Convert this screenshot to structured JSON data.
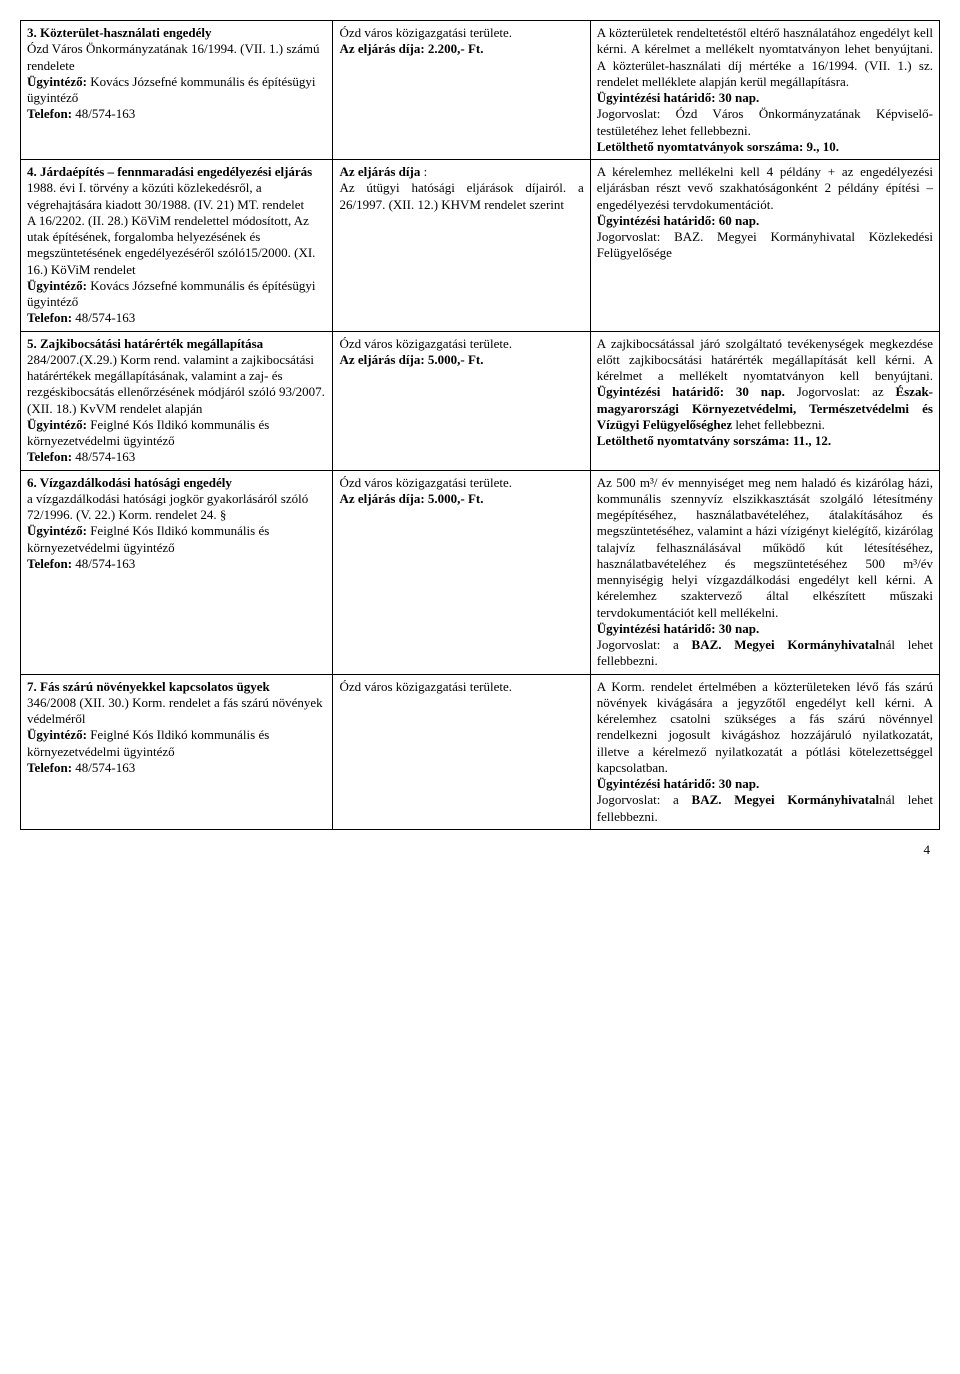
{
  "rows": [
    {
      "c1": [
        {
          "t": "3. Közterület-használati engedély",
          "b": true
        },
        {
          "t": "Ózd Város Önkormányzatának 16/1994. (VII. 1.) számú rendelete"
        },
        {
          "t": "Ügyintéző:",
          "b": true,
          "inline": " Kovács Józsefné kommunális és építésügyi ügyintéző"
        },
        {
          "t": "Telefon:",
          "b": true,
          "inline": " 48/574-163"
        }
      ],
      "c2": [
        {
          "t": "Ózd város közigazgatási területe."
        },
        {
          "t": "Az eljárás díja: 2.200,- Ft.",
          "b": true
        }
      ],
      "c3": [
        {
          "t": "A közterületek rendeltetéstől eltérő használatához engedélyt kell kérni. A kérelmet a mellékelt nyomtatványon lehet benyújtani. A közterület-használati díj mértéke a 16/1994. (VII. 1.) sz. rendelet melléklete alapján kerül megállapításra.",
          "just": true
        },
        {
          "t": "Ügyintézési határidő: 30 nap.",
          "b": true
        },
        {
          "t": "Jogorvoslat: Ózd Város Önkormányzatának Képviselő-testületéhez lehet fellebbezni.",
          "just": true
        },
        {
          "t": "Letölthető nyomtatványok sorszáma: 9., 10.",
          "b": true
        }
      ]
    },
    {
      "c1": [
        {
          "t": "4. Járdaépítés – fennmaradási engedélyezési eljárás",
          "b": true
        },
        {
          "t": "1988. évi I. törvény a közúti közlekedésről, a végrehajtására kiadott 30/1988. (IV. 21) MT. rendelet"
        },
        {
          "t": "A 16/2202. (II. 28.) KöViM rendelettel módosított, Az utak építésének, forgalomba helyezésének és megszüntetésének engedélyezéséről szóló15/2000. (XI. 16.) KöViM rendelet"
        },
        {
          "t": "Ügyintéző:",
          "b": true,
          "inline": " Kovács Józsefné kommunális és építésügyi ügyintéző"
        },
        {
          "t": "Telefon:",
          "b": true,
          "inline": " 48/574-163"
        }
      ],
      "c2": [
        {
          "t": "Az eljárás díja",
          "b": true,
          "inline": " :"
        },
        {
          "t": "Az útügyi hatósági eljárások díjairól. a 26/1997. (XII. 12.) KHVM rendelet szerint",
          "just": true
        }
      ],
      "c3": [
        {
          "t": "A kérelemhez mellékelni kell 4 példány + az engedélyezési eljárásban részt vevő szakhatóságonként 2 példány építési – engedélyezési tervdokumentációt.",
          "just": true
        },
        {
          "t": " "
        },
        {
          "t": "Ügyintézési határidő: 60 nap.",
          "b": true
        },
        {
          "t": "Jogorvoslat: BAZ. Megyei Kormányhivatal Közlekedési Felügyelősége",
          "just": true
        }
      ]
    },
    {
      "c1": [
        {
          "t": "5. Zajkibocsátási határérték megállapítása",
          "b": true
        },
        {
          "t": "284/2007.(X.29.) Korm rend. valamint a zajkibocsátási határértékek megállapításának, valamint a zaj- és rezgéskibocsátás ellenőrzésének módjáról szóló 93/2007. (XII. 18.) KvVM rendelet alapján"
        },
        {
          "t": " "
        },
        {
          "t": "Ügyintéző:",
          "b": true,
          "inline": " Feiglné Kós Ildikó kommunális és környezetvédelmi ügyintéző"
        },
        {
          "t": "Telefon:",
          "b": true,
          "inline": " 48/574-163"
        }
      ],
      "c2": [
        {
          "t": "Ózd város közigazgatási területe."
        },
        {
          "t": "Az eljárás díja: 5.000,- Ft.",
          "b": true
        }
      ],
      "c3": [
        {
          "t": "A zajkibocsátással járó szolgáltató tevékenységek megkezdése előtt zajkibocsátási határérték megállapítását kell kérni. A kérelmet a mellékelt nyomtatványon kell benyújtani.",
          "just": true,
          "trail_b": " Ügyintézési határidő: 30 nap.",
          "trail2": " Jogorvoslat: az ",
          "trail2_b": "Észak-magyarországi Környezetvédelmi, Természetvédelmi és Vízügyi Felügyelőséghez",
          "trail3": " lehet fellebbezni."
        },
        {
          "t": "Letölthető nyomtatvány sorszáma: 11., 12.",
          "b": true
        }
      ]
    },
    {
      "c1": [
        {
          "t": "6. Vízgazdálkodási hatósági engedély",
          "b": true
        },
        {
          "t": "a vízgazdálkodási hatósági jogkör gyakorlásáról szóló 72/1996. (V. 22.) Korm. rendelet 24. §"
        },
        {
          "t": " "
        },
        {
          "t": "Ügyintéző:",
          "b": true,
          "inline": " Feiglné Kós Ildikó kommunális és környezetvédelmi ügyintéző"
        },
        {
          "t": "Telefon:",
          "b": true,
          "inline": " 48/574-163"
        }
      ],
      "c2": [
        {
          "t": "Ózd város közigazgatási területe."
        },
        {
          "t": "Az eljárás díja: 5.000,- Ft.",
          "b": true
        }
      ],
      "c3": [
        {
          "t": "Az 500 m³/ év mennyiséget meg nem haladó és kizárólag házi, kommunális szennyvíz elszikkasztását szolgáló létesítmény megépítéséhez, használatbavételéhez, átalakításához és megszüntetéséhez, valamint a házi vízigényt kielégítő, kizárólag talajvíz felhasználásával működő kút létesítéséhez, használatbavételéhez és megszüntetéséhez 500 m³/év mennyiségig helyi vízgazdálkodási engedélyt kell kérni. A kérelemhez szaktervező által elkészített műszaki tervdokumentációt kell mellékelni.",
          "just": true
        },
        {
          "t": "Ügyintézési határidő: 30 nap.",
          "b": true
        },
        {
          "t": "Jogorvoslat: a ",
          "just": true,
          "trail_b": "BAZ. Megyei Kormányhivatal",
          "trail2": "nál lehet fellebbezni."
        }
      ]
    },
    {
      "c1": [
        {
          "t": "7. Fás szárú növényekkel kapcsolatos ügyek",
          "b": true
        },
        {
          "t": "346/2008 (XII. 30.) Korm. rendelet a fás szárú növények védelméről"
        },
        {
          "t": " "
        },
        {
          "t": "Ügyintéző:",
          "b": true,
          "inline": " Feiglné Kós Ildikó kommunális és környezetvédelmi ügyintéző"
        },
        {
          "t": "Telefon:",
          "b": true,
          "inline": " 48/574-163"
        }
      ],
      "c2": [
        {
          "t": "Ózd város közigazgatási területe."
        }
      ],
      "c3": [
        {
          "t": "A Korm. rendelet értelmében a közterületeken lévő fás szárú növények kivágására a jegyzőtől engedélyt kell kérni. A kérelemhez csatolni szükséges a fás szárú növénnyel rendelkezni jogosult kivágáshoz hozzájáruló nyilatkozatát, illetve a kérelmező nyilatkozatát a pótlási kötelezettséggel kapcsolatban.",
          "just": true
        },
        {
          "t": "Ügyintézési határidő: 30 nap.",
          "b": true
        },
        {
          "t": "Jogorvoslat: a ",
          "just": true,
          "trail_b": "BAZ. Megyei Kormányhivatal",
          "trail2": "nál lehet fellebbezni."
        }
      ]
    }
  ],
  "pageNumber": "4"
}
